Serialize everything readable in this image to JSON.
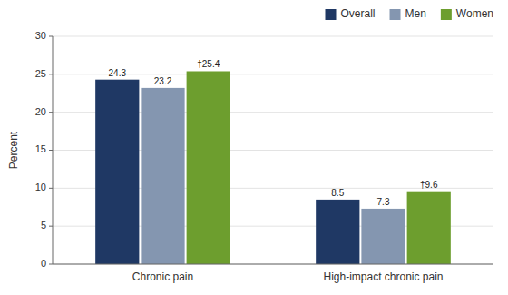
{
  "chart_data": {
    "type": "bar",
    "categories": [
      "Chronic pain",
      "High-impact chronic pain"
    ],
    "series": [
      {
        "name": "Overall",
        "color": "#1f3864",
        "values": [
          24.3,
          8.5
        ]
      },
      {
        "name": "Men",
        "color": "#8496b0",
        "values": [
          23.2,
          7.3
        ]
      },
      {
        "name": "Women",
        "color": "#6d9e2e",
        "values": [
          25.4,
          9.6
        ],
        "value_labels": [
          "†25.4",
          "†9.6"
        ]
      }
    ],
    "y_label": "Percent",
    "ylim": [
      0,
      30
    ],
    "yticks": [
      0,
      5,
      10,
      15,
      20,
      25,
      30
    ],
    "grid": true,
    "legend": "upper right",
    "data_labels": true
  }
}
